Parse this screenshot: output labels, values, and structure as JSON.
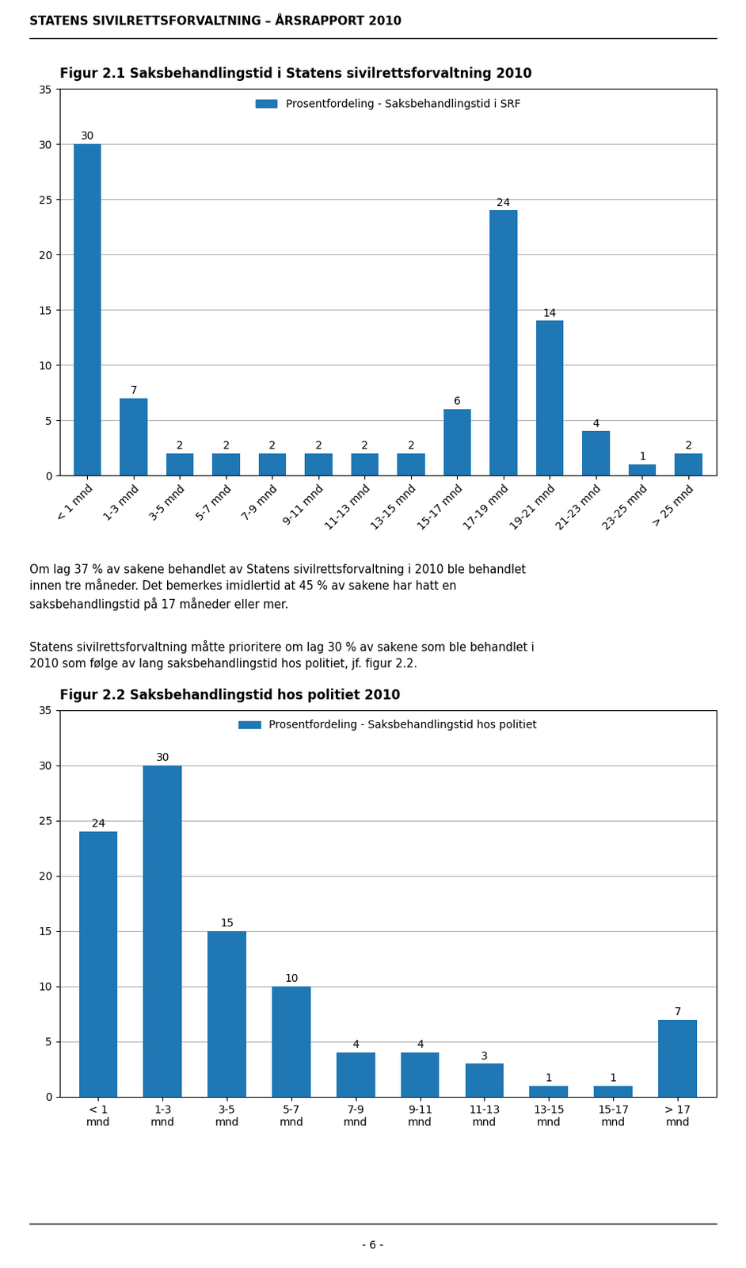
{
  "title": "STATENS SIVILRETTSFORVALTNING – ÅRSRAPPORT 2010",
  "annotations": [
    "Om lag 37 % av sakene behandlet av Statens sivilrettsforvaltning i 2010 ble behandlet\ninnen tre måneder. Det bemerkes imidlertid at 45 % av sakene har hatt en\nsaksbehandlingstid på 17 måneder eller mer.",
    "Statens sivilrettsforvaltning måtte prioritere om lag 30 % av sakene som ble behandlet i\n2010 som følge av lang saksbehandlingstid hos politiet, jf. figur 2.2.",
    "- 6 -"
  ],
  "chart_data": [
    {
      "type": "bar",
      "title": "Figur 2.1 Saksbehandlingstid i Statens sivilrettsforvaltning 2010",
      "categories": [
        "< 1 mnd",
        "1-3 mnd",
        "3-5 mnd",
        "5-7 mnd",
        "7-9 mnd",
        "9-11 mnd",
        "11-13 mnd",
        "13-15 mnd",
        "15-17 mnd",
        "17-19 mnd",
        "19-21 mnd",
        "21-23 mnd",
        "23-25 mnd",
        "> 25 mnd"
      ],
      "series": [
        {
          "name": "Prosentfordeling - Saksbehandlingstid i SRF",
          "values": [
            30,
            7,
            2,
            2,
            2,
            2,
            2,
            2,
            6,
            24,
            14,
            4,
            1,
            2
          ]
        }
      ],
      "ylim": [
        0,
        35
      ],
      "yticks": [
        0,
        5,
        10,
        15,
        20,
        25,
        30,
        35
      ],
      "grid": true,
      "legend": "upper center",
      "data_labels": true
    },
    {
      "type": "bar",
      "title": "Figur 2.2 Saksbehandlingstid hos politiet 2010",
      "categories": [
        "< 1\nmnd",
        "1-3\nmnd",
        "3-5\nmnd",
        "5-7\nmnd",
        "7-9\nmnd",
        "9-11\nmnd",
        "11-13\nmnd",
        "13-15\nmnd",
        "15-17\nmnd",
        "> 17\nmnd"
      ],
      "series": [
        {
          "name": "Prosentfordeling - Saksbehandlingstid hos politiet",
          "values": [
            24,
            30,
            15,
            10,
            4,
            4,
            3,
            1,
            1,
            7
          ]
        }
      ],
      "ylim": [
        0,
        35
      ],
      "yticks": [
        0,
        5,
        10,
        15,
        20,
        25,
        30,
        35
      ],
      "grid": true,
      "legend": "upper center",
      "data_labels": true
    }
  ]
}
